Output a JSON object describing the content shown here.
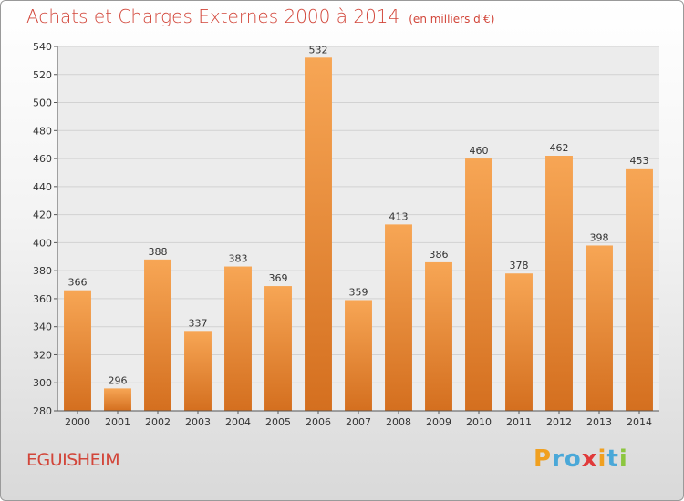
{
  "header": {
    "title": "Achats et Charges Externes 2000 à 2014",
    "unit": "(en milliers d'€)"
  },
  "footer": {
    "commune": "EGUISHEIM",
    "logo_letters": [
      "P",
      "r",
      "o",
      "x",
      "i",
      "t",
      "i"
    ],
    "logo_colors": [
      "#f0a020",
      "#4aa8d8",
      "#4aa8d8",
      "#e03a3a",
      "#f0a020",
      "#4aa8d8",
      "#8cc63f"
    ]
  },
  "colors": {
    "bar_top": "#f7a655",
    "bar_bottom": "#d46f1f",
    "title": "#d2463a",
    "axis": "#333333"
  },
  "chart_data": {
    "type": "bar",
    "categories": [
      "2000",
      "2001",
      "2002",
      "2003",
      "2004",
      "2005",
      "2006",
      "2007",
      "2008",
      "2009",
      "2010",
      "2011",
      "2012",
      "2013",
      "2014"
    ],
    "values": [
      366,
      296,
      388,
      337,
      383,
      369,
      532,
      359,
      413,
      386,
      460,
      378,
      462,
      398,
      453
    ],
    "title": "Achats et Charges Externes 2000 à 2014",
    "ylim": [
      280,
      540
    ],
    "yticks": [
      280,
      300,
      320,
      340,
      360,
      380,
      400,
      420,
      440,
      460,
      480,
      500,
      520,
      540
    ],
    "grid": true,
    "data_labels": true
  }
}
